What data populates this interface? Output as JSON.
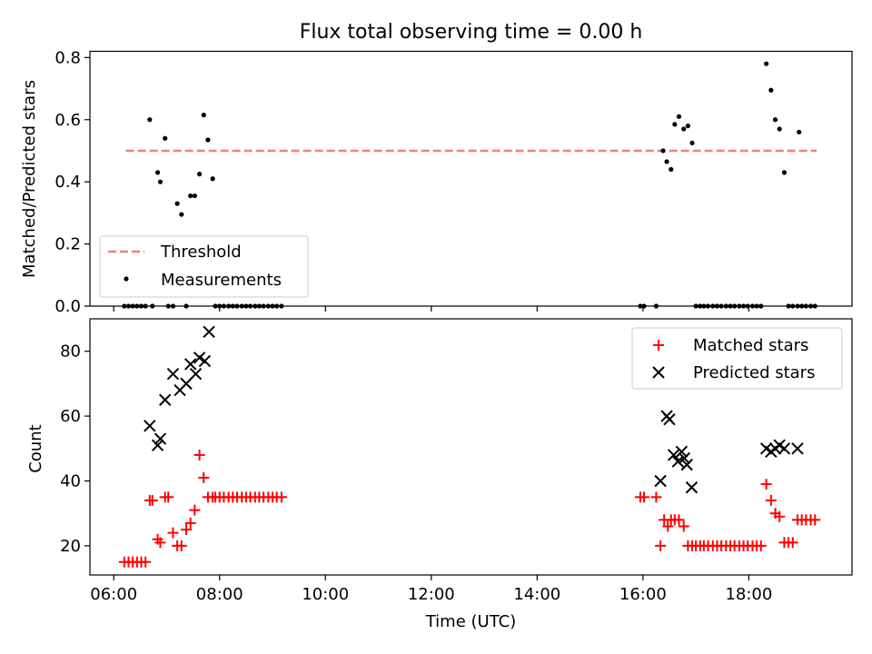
{
  "figure": {
    "title": "Flux total observing time = 0.00 h"
  },
  "chart_data": [
    {
      "type": "scatter",
      "panel": "top",
      "title": "Flux total observing time = 0.00 h",
      "xlabel": "",
      "ylabel": "Matched/Predicted stars",
      "xlim_hours": [
        5.55,
        19.95
      ],
      "ylim": [
        0,
        0.82
      ],
      "yticks": [
        0.0,
        0.2,
        0.4,
        0.6,
        0.8
      ],
      "ytick_labels": [
        "0.0",
        "0.2",
        "0.4",
        "0.6",
        "0.8"
      ],
      "xticks_hours": [
        6,
        8,
        10,
        12,
        14,
        16,
        18
      ],
      "grid": false,
      "legend_position": "lower-left",
      "threshold": {
        "name": "Threshold",
        "value": 0.5,
        "x_range_hours": [
          6.23,
          19.28
        ],
        "color": "#f08080",
        "style": "dashed"
      },
      "series": [
        {
          "name": "Measurements",
          "marker": "dot",
          "color": "#000000",
          "x_hours": [
            6.2,
            6.28,
            6.36,
            6.44,
            6.52,
            6.6,
            6.68,
            6.73,
            6.83,
            6.88,
            6.97,
            7.03,
            7.12,
            7.2,
            7.28,
            7.37,
            7.45,
            7.53,
            7.62,
            7.7,
            7.78,
            7.87,
            7.92,
            8.0,
            8.08,
            8.17,
            8.25,
            8.33,
            8.42,
            8.5,
            8.58,
            8.67,
            8.75,
            8.83,
            8.92,
            9.0,
            9.08,
            9.17,
            15.95,
            16.02,
            16.25,
            16.38,
            16.45,
            16.53,
            16.6,
            16.68,
            16.77,
            16.85,
            16.93,
            17.0,
            17.08,
            17.15,
            17.23,
            17.32,
            17.4,
            17.48,
            17.57,
            17.65,
            17.73,
            17.82,
            17.9,
            17.98,
            18.07,
            18.15,
            18.23,
            18.33,
            18.42,
            18.5,
            18.58,
            18.67,
            18.75,
            18.83,
            18.92,
            18.95,
            19.0,
            19.08,
            19.17,
            19.25
          ],
          "y": [
            0.0,
            0.0,
            0.0,
            0.0,
            0.0,
            0.0,
            0.6,
            0.0,
            0.43,
            0.4,
            0.54,
            0.0,
            0.0,
            0.33,
            0.295,
            0.0,
            0.355,
            0.355,
            0.425,
            0.615,
            0.535,
            0.41,
            0.0,
            0.0,
            0.0,
            0.0,
            0.0,
            0.0,
            0.0,
            0.0,
            0.0,
            0.0,
            0.0,
            0.0,
            0.0,
            0.0,
            0.0,
            0.0,
            0.0,
            0.0,
            0.0,
            0.5,
            0.465,
            0.44,
            0.585,
            0.61,
            0.57,
            0.58,
            0.525,
            0.0,
            0.0,
            0.0,
            0.0,
            0.0,
            0.0,
            0.0,
            0.0,
            0.0,
            0.0,
            0.0,
            0.0,
            0.0,
            0.0,
            0.0,
            0.0,
            0.78,
            0.695,
            0.6,
            0.57,
            0.43,
            0.0,
            0.0,
            0.0,
            0.56,
            0.0,
            0.0,
            0.0,
            0.0
          ]
        }
      ]
    },
    {
      "type": "scatter",
      "panel": "bottom",
      "title": "",
      "xlabel": "Time (UTC)",
      "ylabel": "Count",
      "xlim_hours": [
        5.55,
        19.95
      ],
      "ylim": [
        11,
        90
      ],
      "yticks": [
        20,
        40,
        60,
        80
      ],
      "ytick_labels": [
        "20",
        "40",
        "60",
        "80"
      ],
      "xticks_hours": [
        6,
        8,
        10,
        12,
        14,
        16,
        18
      ],
      "xtick_labels": [
        "06:00",
        "08:00",
        "10:00",
        "12:00",
        "14:00",
        "16:00",
        "18:00"
      ],
      "grid": false,
      "legend_position": "upper-right",
      "series": [
        {
          "name": "Matched stars",
          "marker": "plus",
          "color": "#ff0000",
          "x_hours": [
            6.2,
            6.28,
            6.36,
            6.44,
            6.52,
            6.6,
            6.68,
            6.73,
            6.83,
            6.88,
            6.97,
            7.03,
            7.12,
            7.2,
            7.28,
            7.37,
            7.45,
            7.53,
            7.62,
            7.7,
            7.78,
            7.87,
            7.92,
            8.0,
            8.08,
            8.17,
            8.25,
            8.33,
            8.42,
            8.5,
            8.58,
            8.67,
            8.75,
            8.83,
            8.92,
            9.0,
            9.08,
            9.17,
            15.95,
            16.02,
            16.25,
            16.33,
            16.4,
            16.47,
            16.53,
            16.6,
            16.68,
            16.77,
            16.85,
            16.93,
            17.0,
            17.08,
            17.15,
            17.23,
            17.32,
            17.4,
            17.48,
            17.57,
            17.65,
            17.73,
            17.82,
            17.9,
            17.98,
            18.07,
            18.15,
            18.23,
            18.33,
            18.42,
            18.5,
            18.58,
            18.67,
            18.75,
            18.83,
            18.92,
            19.0,
            19.08,
            19.17,
            19.25
          ],
          "y": [
            15,
            15,
            15,
            15,
            15,
            15,
            34,
            34,
            22,
            21,
            35,
            35,
            24,
            20,
            20,
            25,
            27,
            31,
            48,
            41,
            35,
            35,
            35,
            35,
            35,
            35,
            35,
            35,
            35,
            35,
            35,
            35,
            35,
            35,
            35,
            35,
            35,
            35,
            35,
            35,
            35,
            20,
            28,
            26,
            28,
            28,
            28,
            26,
            20,
            20,
            20,
            20,
            20,
            20,
            20,
            20,
            20,
            20,
            20,
            20,
            20,
            20,
            20,
            20,
            20,
            20,
            39,
            34,
            30,
            29,
            21,
            21,
            21,
            28,
            28,
            28,
            28,
            28
          ]
        },
        {
          "name": "Predicted stars",
          "marker": "x",
          "color": "#000000",
          "x_hours": [
            6.68,
            6.83,
            6.88,
            6.97,
            7.12,
            7.25,
            7.37,
            7.45,
            7.55,
            7.62,
            7.72,
            7.8,
            16.33,
            16.45,
            16.5,
            16.58,
            16.66,
            16.73,
            16.78,
            16.83,
            16.92,
            18.33,
            18.42,
            18.5,
            18.58,
            18.67,
            18.92
          ],
          "y": [
            57,
            51,
            53,
            65,
            73,
            68,
            70,
            76,
            73,
            78,
            77,
            86,
            40,
            60,
            59,
            48,
            46,
            49,
            47,
            45,
            38,
            50,
            49,
            50,
            51,
            50,
            50
          ]
        }
      ]
    }
  ]
}
